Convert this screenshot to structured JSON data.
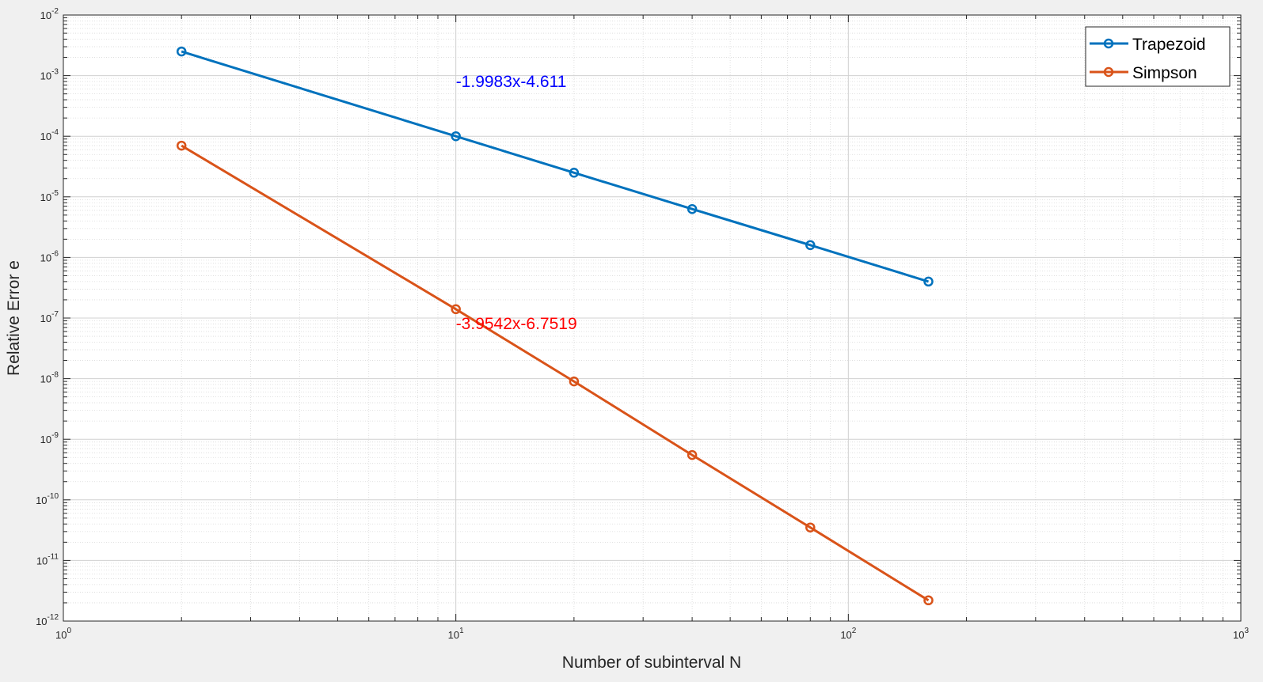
{
  "chart_data": {
    "type": "line",
    "title": "",
    "xlabel": "Number of subinterval N",
    "ylabel": "Relative Error e",
    "xscale": "log",
    "yscale": "log",
    "xlim": [
      1,
      1000
    ],
    "ylim": [
      1e-12,
      0.01
    ],
    "grid": true,
    "minor_grid": true,
    "legend_position": "top-right",
    "x": [
      2,
      10,
      20,
      40,
      80,
      160
    ],
    "series": [
      {
        "name": "Trapezoid",
        "color": "#0072bd",
        "marker": "circle",
        "values": [
          0.0025,
          0.0001,
          2.5e-05,
          6.3e-06,
          1.6e-06,
          4e-07
        ]
      },
      {
        "name": "Simpson",
        "color": "#d95319",
        "marker": "circle",
        "values": [
          7e-05,
          1.4e-07,
          9e-09,
          5.5e-10,
          3.5e-11,
          2.2e-12
        ]
      }
    ],
    "x_ticks": [
      {
        "base": "10",
        "exp": "0",
        "value": 1
      },
      {
        "base": "10",
        "exp": "1",
        "value": 10
      },
      {
        "base": "10",
        "exp": "2",
        "value": 100
      },
      {
        "base": "10",
        "exp": "3",
        "value": 1000
      }
    ],
    "y_ticks": [
      {
        "base": "10",
        "exp": "-2",
        "value": 0.01
      },
      {
        "base": "10",
        "exp": "-3",
        "value": 0.001
      },
      {
        "base": "10",
        "exp": "-4",
        "value": 0.0001
      },
      {
        "base": "10",
        "exp": "-5",
        "value": 1e-05
      },
      {
        "base": "10",
        "exp": "-6",
        "value": 1e-06
      },
      {
        "base": "10",
        "exp": "-7",
        "value": 1e-07
      },
      {
        "base": "10",
        "exp": "-8",
        "value": 1e-08
      },
      {
        "base": "10",
        "exp": "-9",
        "value": 1e-09
      },
      {
        "base": "10",
        "exp": "-10",
        "value": 1e-10
      },
      {
        "base": "10",
        "exp": "-11",
        "value": 1e-11
      },
      {
        "base": "10",
        "exp": "-12",
        "value": 1e-12
      }
    ],
    "annotations": [
      {
        "text": "-1.9983x-4.611",
        "color": "#0000ff",
        "x": 10,
        "y": 0.00082
      },
      {
        "text": "-3.9542x-6.7519",
        "color": "#ff0000",
        "x": 10,
        "y": 8.3e-08
      }
    ]
  }
}
